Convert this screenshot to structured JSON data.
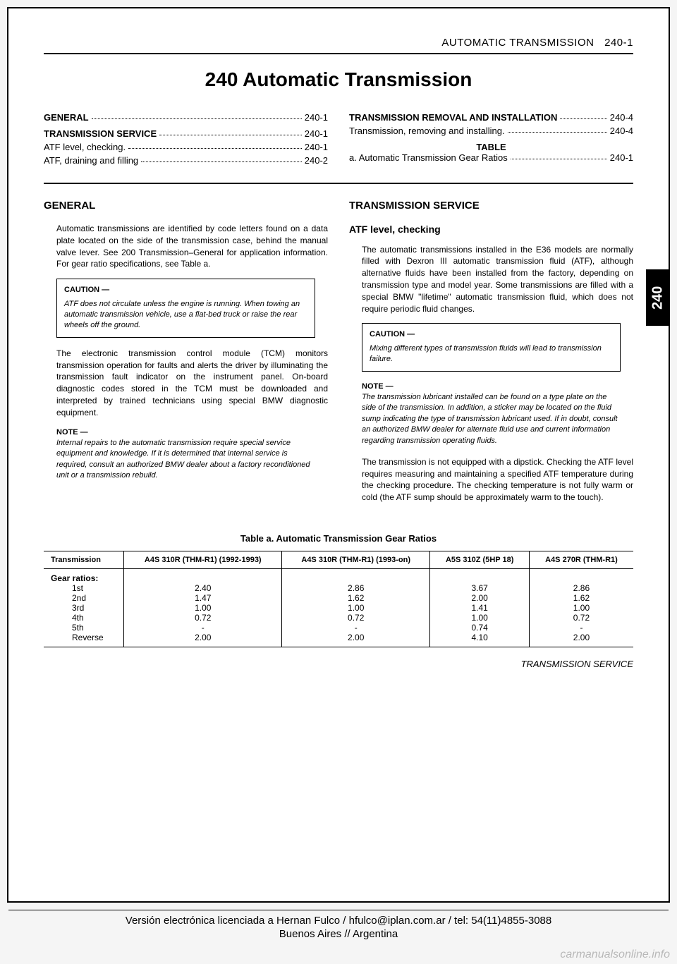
{
  "header": {
    "label": "AUTOMATIC TRANSMISSION",
    "pagenum": "240-1"
  },
  "chapter_title": "240 Automatic Transmission",
  "side_tab": "240",
  "toc": {
    "left": [
      {
        "title": "GENERAL",
        "bold": true,
        "page": "240-1"
      },
      {
        "title": "TRANSMISSION SERVICE",
        "bold": true,
        "page": "240-1"
      },
      {
        "title": "ATF level, checking.",
        "bold": false,
        "page": "240-1"
      },
      {
        "title": "ATF, draining and filling",
        "bold": false,
        "page": "240-2"
      }
    ],
    "right": [
      {
        "title": "TRANSMISSION REMOVAL AND INSTALLATION",
        "bold": true,
        "page": "240-4"
      },
      {
        "title": "Transmission, removing and installing.",
        "bold": false,
        "page": "240-4"
      }
    ],
    "table_ref": {
      "heading": "TABLE",
      "line": {
        "title": "a. Automatic Transmission Gear Ratios",
        "page": "240-1"
      }
    }
  },
  "left_col": {
    "heading": "GENERAL",
    "p1": "Automatic transmissions are identified by code letters found on a data plate located on the side of the transmission case, behind the manual valve lever. See 200 Transmission–General for application information. For gear ratio specifications, see Table a.",
    "caution": {
      "title": "CAUTION —",
      "text": "ATF does not circulate unless the engine is running. When towing an automatic transmission vehicle, use a flat-bed truck or raise the rear wheels off the ground."
    },
    "p2": "The electronic transmission control module (TCM) monitors transmission operation for faults and alerts the driver by illuminating the transmission fault indicator on the instrument panel. On-board diagnostic codes stored in the TCM must be downloaded and interpreted by trained technicians using special BMW diagnostic equipment.",
    "note": {
      "title": "NOTE —",
      "text": "Internal repairs to the automatic transmission require special service equipment and knowledge. If it is determined that internal service is required, consult an authorized BMW dealer about a factory reconditioned unit or a transmission rebuild."
    }
  },
  "right_col": {
    "heading": "TRANSMISSION SERVICE",
    "subheading": "ATF level, checking",
    "p1": "The automatic transmissions installed in the E36 models are normally filled with Dexron III automatic transmission fluid (ATF), although alternative fluids have been installed from the factory, depending on transmission type and model year. Some transmissions are filled with a special BMW \"lifetime\" automatic transmission fluid, which does not require periodic fluid changes.",
    "caution": {
      "title": "CAUTION —",
      "text": "Mixing different types of transmission fluids will lead to transmission failure."
    },
    "note": {
      "title": "NOTE —",
      "text": "The transmission lubricant installed can be found on a type plate on the side of the transmission. In addition, a sticker may be located on the fluid sump indicating the type of transmission lubricant used. If in doubt, consult an authorized BMW dealer for alternate fluid use and current information regarding transmission operating fluids."
    },
    "p2": "The transmission is not equipped with a dipstick. Checking the ATF level requires measuring and maintaining a specified ATF temperature during the checking procedure. The checking temperature is not fully warm or cold (the ATF sump should be approximately warm to the touch)."
  },
  "gear_table": {
    "title": "Table a. Automatic Transmission Gear Ratios",
    "columns": [
      "Transmission",
      "A4S 310R (THM-R1)\n(1992-1993)",
      "A4S 310R (THM-R1)\n(1993-on)",
      "A5S 310Z (5HP 18)",
      "A4S 270R (THM-R1)"
    ],
    "row_header": "Gear ratios:",
    "rows": [
      {
        "label": "1st",
        "v": [
          "2.40",
          "2.86",
          "3.67",
          "2.86"
        ]
      },
      {
        "label": "2nd",
        "v": [
          "1.47",
          "1.62",
          "2.00",
          "1.62"
        ]
      },
      {
        "label": "3rd",
        "v": [
          "1.00",
          "1.00",
          "1.41",
          "1.00"
        ]
      },
      {
        "label": "4th",
        "v": [
          "0.72",
          "0.72",
          "1.00",
          "0.72"
        ]
      },
      {
        "label": "5th",
        "v": [
          "-",
          "-",
          "0.74",
          "-"
        ]
      },
      {
        "label": "Reverse",
        "v": [
          "2.00",
          "2.00",
          "4.10",
          "2.00"
        ]
      }
    ]
  },
  "footer_right": "TRANSMISSION SERVICE",
  "license": {
    "line1": "Versión electrónica licenciada a Hernan Fulco / hfulco@iplan.com.ar / tel: 54(11)4855-3088",
    "line2": "Buenos Aires // Argentina"
  },
  "watermark": "carmanualsonline.info"
}
